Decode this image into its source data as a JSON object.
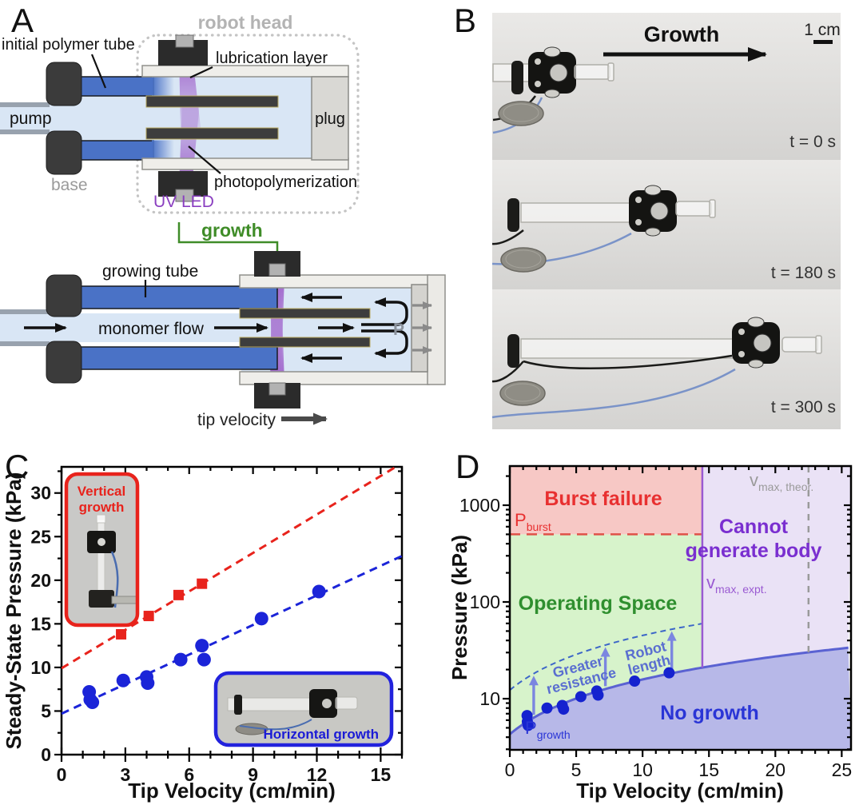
{
  "panel_a": {
    "label": "A",
    "annotations": {
      "robot_head": "robot head",
      "initial_polymer_tube": "initial polymer tube",
      "lubrication_layer": "lubrication layer",
      "pump": "pump",
      "plug": "plug",
      "base": "base",
      "uv_led": "UV LED",
      "photopolymerization": "photopolymerization",
      "growth": "growth",
      "growing_tube": "growing tube",
      "monomer_flow": "monomer flow",
      "pressure_symbol": "P",
      "tip_velocity": "tip velocity"
    },
    "colors": {
      "tube_blue": "#4a72c6",
      "fluid_blue": "#d9e6f5",
      "uv_purple": "#9b59c8",
      "growth_green": "#3f8c28",
      "dark_gray": "#3b3b3b",
      "robot_head_gray": "#b3b3b3"
    }
  },
  "panel_b": {
    "label": "B",
    "growth_arrow_label": "Growth",
    "scale_bar_label": "1 cm",
    "frames": [
      {
        "time_label": "t = 0 s"
      },
      {
        "time_label": "t = 180 s"
      },
      {
        "time_label": "t = 300 s"
      }
    ]
  },
  "chart_data": [
    {
      "panel": "C",
      "type": "scatter",
      "xlabel": "Tip Velocity (cm/min)",
      "ylabel": "Steady-State Pressure (kPa)",
      "xlim": [
        0,
        16
      ],
      "ylim": [
        0,
        33
      ],
      "xticks": [
        0,
        3,
        6,
        9,
        12,
        15
      ],
      "yticks": [
        0,
        5,
        10,
        15,
        20,
        25,
        30
      ],
      "x_minor_step": 1,
      "y_minor_step": 2.5,
      "series": [
        {
          "name": "Vertical growth",
          "marker": "square",
          "color": "#e8231c",
          "points": [
            [
              2.8,
              13.8
            ],
            [
              4.1,
              15.9
            ],
            [
              5.5,
              18.3
            ],
            [
              6.6,
              19.6
            ]
          ],
          "fit_line": {
            "intercept": 9.9,
            "slope": 1.47,
            "style": "dashed"
          }
        },
        {
          "name": "Horizontal growth",
          "marker": "circle",
          "color": "#1b24d8",
          "points": [
            [
              1.3,
              7.2
            ],
            [
              1.35,
              6.3
            ],
            [
              1.45,
              6.0
            ],
            [
              2.9,
              8.5
            ],
            [
              4.0,
              8.9
            ],
            [
              4.05,
              8.2
            ],
            [
              5.6,
              10.9
            ],
            [
              6.6,
              12.5
            ],
            [
              6.7,
              10.9
            ],
            [
              9.4,
              15.6
            ],
            [
              12.1,
              18.7
            ]
          ],
          "fit_line": {
            "intercept": 4.7,
            "slope": 1.13,
            "style": "dashed"
          }
        }
      ],
      "insets": [
        {
          "label": "Vertical growth",
          "lines": [
            "Vertical",
            "growth"
          ],
          "border_color": "#e8231c"
        },
        {
          "label": "Horizontal growth",
          "border_color": "#2222dd"
        }
      ]
    },
    {
      "panel": "D",
      "type": "scatter",
      "xlabel": "Tip Velocity (cm/min)",
      "ylabel": "Pressure (kPa)",
      "xlim": [
        0,
        25.7
      ],
      "ylim_log": [
        2.96,
        2540
      ],
      "xticks": [
        0,
        5,
        10,
        15,
        20,
        25
      ],
      "yticks": [
        10,
        100,
        1000
      ],
      "x_minor_step": 1,
      "boundaries": {
        "p_burst_kpa": 500,
        "v_max_expt": 14.5,
        "v_max_theor": 22.5,
        "p_growth_line": {
          "intercept": 4.3,
          "slope": 1.15
        },
        "resistance_dashed_multiplier": 2.85
      },
      "regions": [
        {
          "name": "Burst failure",
          "lines": [
            "Burst failure"
          ],
          "color": "#f7c8c5",
          "label_color": "#e83030"
        },
        {
          "name": "Operating Space",
          "lines": [
            "Operating Space"
          ],
          "color": "#d7f3cb",
          "label_color": "#2f8f2f"
        },
        {
          "name": "Cannot generate body",
          "lines": [
            "Cannot",
            "generate body"
          ],
          "color": "#eae2f6",
          "label_color": "#7a2fd0"
        },
        {
          "name": "No growth",
          "lines": [
            "No growth"
          ],
          "color": "#b7b8e8",
          "label_color": "#2a35d6"
        }
      ],
      "line_labels": {
        "p_burst_main": "P",
        "p_burst_sub": "burst",
        "p_growth_main": "P",
        "p_growth_sub": "growth",
        "v_max_main": "v",
        "v_max_expt_sub": "max, expt.",
        "v_max_theor_sub": "max, theor.",
        "v_expt_color": "#9a5ad2",
        "v_theor_color": "#9a9a9a",
        "p_burst_color": "#e83030",
        "p_growth_color": "#2a35d6"
      },
      "annotations": {
        "greater_resistance": [
          "Greater",
          "resistance"
        ],
        "robot_length": [
          "Robot",
          "length"
        ],
        "annotation_color": "#5a6ed0",
        "arrow_color": "#7b86e0"
      },
      "points": {
        "name": "Horizontal growth data",
        "color": "#1522cf",
        "values": [
          [
            1.3,
            6.7
          ],
          [
            1.32,
            5.8
          ],
          [
            1.38,
            5.3
          ],
          [
            2.8,
            8.0
          ],
          [
            3.95,
            8.5
          ],
          [
            4.05,
            7.8
          ],
          [
            5.35,
            10.5
          ],
          [
            6.55,
            12.0
          ],
          [
            6.65,
            10.9
          ],
          [
            9.4,
            15.2
          ],
          [
            12.0,
            18.5
          ]
        ]
      },
      "arrows_x": [
        1.8,
        7.2,
        12.2
      ]
    }
  ]
}
